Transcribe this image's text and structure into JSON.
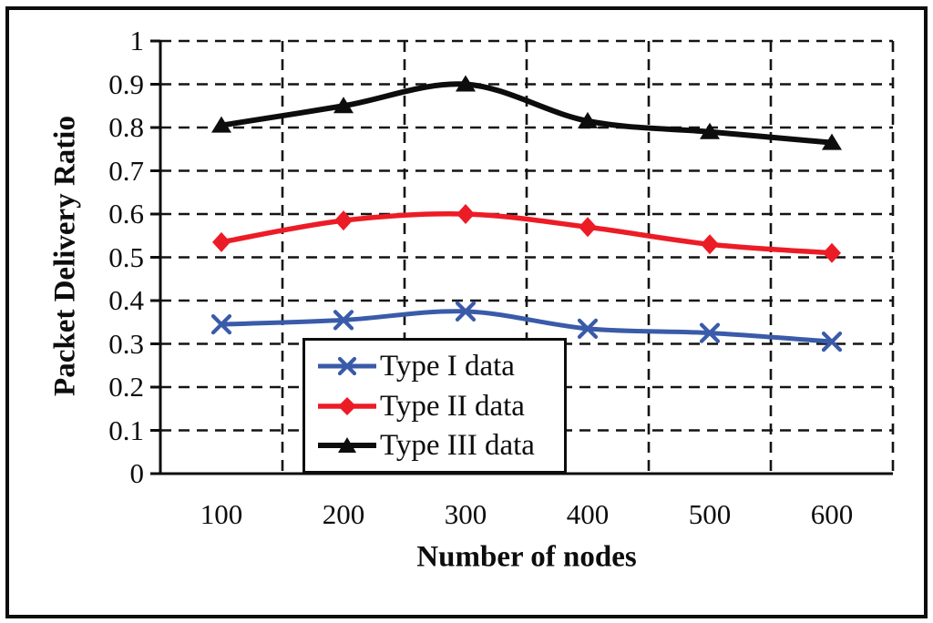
{
  "figure": {
    "background": "#ffffff",
    "outer_border_color": "#0d0d0d"
  },
  "chart_data": {
    "type": "line",
    "title": "",
    "xlabel": "Number of nodes",
    "ylabel": "Packet Delivery Ratio",
    "categories": [
      "100",
      "200",
      "300",
      "400",
      "500",
      "600"
    ],
    "ylim": [
      0,
      1
    ],
    "ytick_step": 0.1,
    "ytick_labels": [
      "0",
      "0.1",
      "0.2",
      "0.3",
      "0.4",
      "0.5",
      "0.6",
      "0.7",
      "0.8",
      "0.9",
      "1"
    ],
    "grid": "dashed-both-axes",
    "grid_color": "#141414",
    "legend_position": "inside-bottom-center",
    "series": [
      {
        "name": "Type I data",
        "color": "#3a5ba9",
        "marker": "x-cross-marker",
        "line_width": 5,
        "values": [
          0.345,
          0.355,
          0.375,
          0.335,
          0.325,
          0.305
        ]
      },
      {
        "name": "Type II data",
        "color": "#ec1c26",
        "marker": "diamond-marker",
        "line_width": 5.5,
        "values": [
          0.535,
          0.585,
          0.6,
          0.57,
          0.53,
          0.51
        ]
      },
      {
        "name": "Type III data",
        "color": "#0d0d0d",
        "marker": "triangle-up-marker",
        "line_width": 6,
        "values": [
          0.805,
          0.85,
          0.9,
          0.815,
          0.79,
          0.765
        ]
      }
    ]
  }
}
